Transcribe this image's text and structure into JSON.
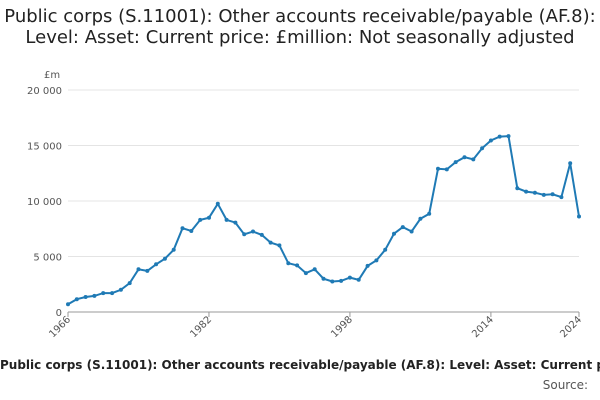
{
  "chart_data": {
    "type": "line",
    "title": "Public corps (S.11001): Other accounts receivable/payable (AF.8): Level: Asset: Current price: £million: Not seasonally adjusted",
    "ylabel": "£m",
    "ylim": [
      0,
      20000
    ],
    "yticks": [
      0,
      5000,
      10000,
      15000,
      20000
    ],
    "ytick_labels": [
      "0",
      "5 000",
      "10 000",
      "15 000",
      "20 000"
    ],
    "xlim": [
      1966,
      2024
    ],
    "xticks": [
      1966,
      1982,
      1998,
      2014,
      2024
    ],
    "xtick_labels": [
      "1966",
      "1982",
      "1998",
      "2014",
      "2024"
    ],
    "grid": true,
    "series": [
      {
        "name": "Public corps (S.11001): Other accounts receivable/payable (AF.8): Level: Asset: Current price: £million: Not seasonally adjusted",
        "color": "#1f7ab5",
        "x": [
          1966,
          1967,
          1968,
          1969,
          1970,
          1971,
          1972,
          1973,
          1974,
          1975,
          1976,
          1977,
          1978,
          1979,
          1980,
          1981,
          1982,
          1983,
          1984,
          1985,
          1986,
          1987,
          1988,
          1989,
          1990,
          1991,
          1992,
          1993,
          1994,
          1995,
          1996,
          1997,
          1998,
          1999,
          2000,
          2001,
          2002,
          2003,
          2004,
          2005,
          2006,
          2007,
          2008,
          2009,
          2010,
          2011,
          2012,
          2013,
          2014,
          2015,
          2016,
          2017,
          2018,
          2019,
          2020,
          2021,
          2022,
          2023,
          2024
        ],
        "values": [
          700,
          1150,
          1350,
          1450,
          1700,
          1700,
          2000,
          2600,
          3850,
          3700,
          4300,
          4800,
          5600,
          7550,
          7300,
          8300,
          8500,
          9750,
          8300,
          8050,
          7000,
          7250,
          6950,
          6250,
          6000,
          4400,
          4200,
          3500,
          3850,
          3000,
          2750,
          2800,
          3100,
          2900,
          4150,
          4650,
          5600,
          7050,
          7650,
          7250,
          8400,
          8850,
          12900,
          12850,
          13500,
          13950,
          13750,
          14750,
          15450,
          15800,
          15850,
          11150,
          10850,
          10750,
          10550,
          10600,
          10350,
          13400,
          8600
        ]
      }
    ],
    "source": "Source:"
  }
}
